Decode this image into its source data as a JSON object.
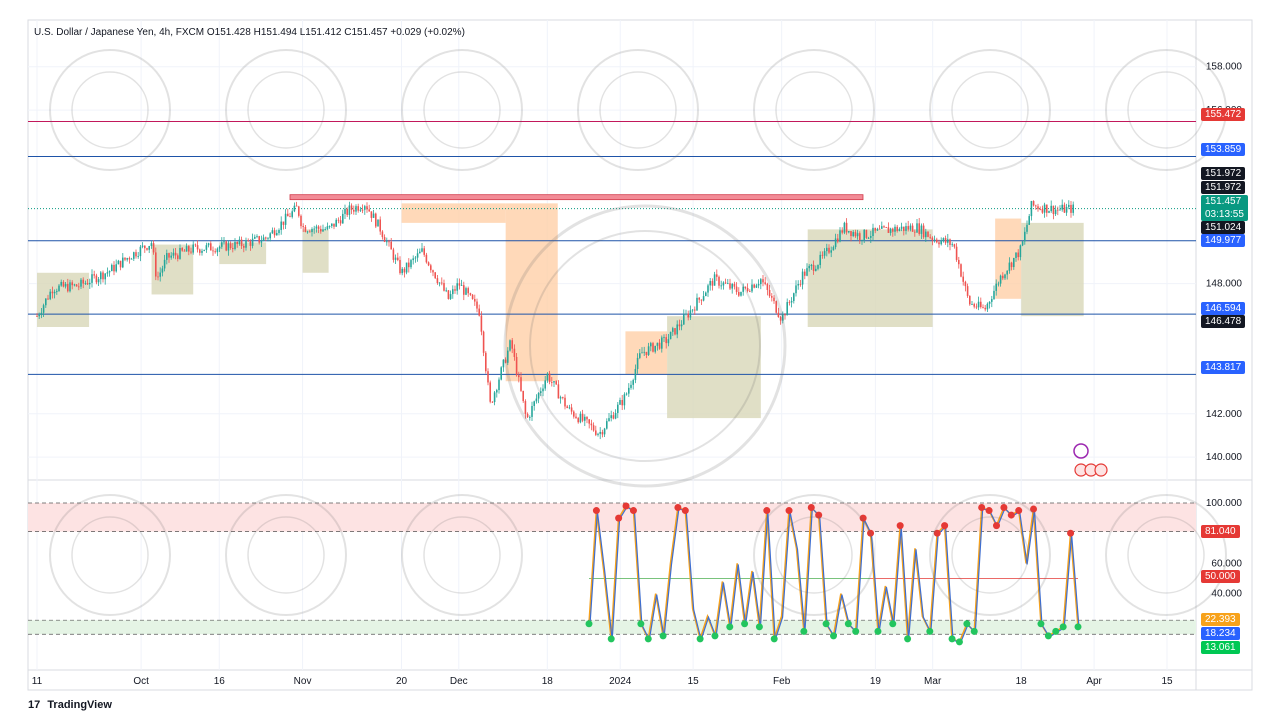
{
  "header": {
    "symbol": "U.S. Dollar / Japanese Yen, 4h, FXCM",
    "open": "O151.428",
    "high": "H151.494",
    "low": "L151.412",
    "close": "C151.457",
    "change": "+0.029 (+0.02%)"
  },
  "brand": {
    "logo": "17",
    "name": "TradingView"
  },
  "colors": {
    "up": "#26a69a",
    "down": "#ef5350",
    "accent": "#2962ff",
    "red_line": "#c2185b",
    "blue_line": "#1e53a8",
    "zone": "#d8d7b8",
    "orange_zone": "#ffcfa8"
  },
  "tags": {
    "t155": "155.472",
    "t153": "153.859",
    "t151h1": "151.972",
    "t151h2": "151.972",
    "t151last": "151.457",
    "countdown": "03:13:55",
    "t151b": "151.024",
    "t149": "149.977",
    "t146a": "146.594",
    "t146b": "146.478",
    "t143": "143.817",
    "osc81": "81.040",
    "osc50": "50.000",
    "osc22": "22.393",
    "osc18": "18.234",
    "osc13": "13.061"
  },
  "chart_data": [
    {
      "type": "candlestick",
      "title": "U.S. Dollar / Japanese Yen, 4h, FXCM",
      "ylim": [
        139.5,
        159
      ],
      "y_ticks": [
        "158.000",
        "156.000",
        "148.000",
        "142.000",
        "140.000"
      ],
      "x_ticks": [
        "11",
        "Oct",
        "16",
        "Nov",
        "20",
        "Dec",
        "18",
        "2024",
        "15",
        "Feb",
        "19",
        "Mar",
        "18",
        "Apr",
        "15"
      ],
      "horizontal_levels": [
        155.472,
        153.859,
        149.977,
        146.594,
        143.817
      ],
      "close_path": [
        [
          "Sep 11",
          146.5
        ],
        [
          "Sep 14",
          147.8
        ],
        [
          "Sep 19",
          147.9
        ],
        [
          "Sep 25",
          148.6
        ],
        [
          "Sep 29",
          149.3
        ],
        [
          "Oct 3",
          149.9
        ],
        [
          "Oct 4",
          148.2
        ],
        [
          "Oct 6",
          149.2
        ],
        [
          "Oct 11",
          149.6
        ],
        [
          "Oct 16",
          149.7
        ],
        [
          "Oct 20",
          149.8
        ],
        [
          "Oct 25",
          150.1
        ],
        [
          "Oct 31",
          151.5
        ],
        [
          "Nov 1",
          150.6
        ],
        [
          "Nov 6",
          150.5
        ],
        [
          "Nov 10",
          151.4
        ],
        [
          "Nov 13",
          151.7
        ],
        [
          "Nov 16",
          150.5
        ],
        [
          "Nov 20",
          148.5
        ],
        [
          "Nov 24",
          149.5
        ],
        [
          "Nov 29",
          147.3
        ],
        [
          "Dec 1",
          148.0
        ],
        [
          "Dec 5",
          146.7
        ],
        [
          "Dec 7",
          142.4
        ],
        [
          "Dec 11",
          145.3
        ],
        [
          "Dec 14",
          141.7
        ],
        [
          "Dec 18",
          143.8
        ],
        [
          "Dec 22",
          142.2
        ],
        [
          "Dec 28",
          141.1
        ],
        [
          "Jan 2",
          142.8
        ],
        [
          "Jan 5",
          144.8
        ],
        [
          "Jan 10",
          145.4
        ],
        [
          "Jan 15",
          146.9
        ],
        [
          "Jan 19",
          148.2
        ],
        [
          "Jan 24",
          147.6
        ],
        [
          "Jan 28",
          148.2
        ],
        [
          "Feb 1",
          146.4
        ],
        [
          "Feb 5",
          148.4
        ],
        [
          "Feb 9",
          149.2
        ],
        [
          "Feb 13",
          150.6
        ],
        [
          "Feb 16",
          150.2
        ],
        [
          "Feb 22",
          150.5
        ],
        [
          "Feb 27",
          150.6
        ],
        [
          "Mar 1",
          150.1
        ],
        [
          "Mar 5",
          149.8
        ],
        [
          "Mar 8",
          147.1
        ],
        [
          "Mar 11",
          146.8
        ],
        [
          "Mar 14",
          148.3
        ],
        [
          "Mar 18",
          149.6
        ],
        [
          "Mar 20",
          151.6
        ],
        [
          "Mar 25",
          151.4
        ],
        [
          "Mar 28",
          151.46
        ]
      ],
      "last_price": 151.457
    },
    {
      "type": "line",
      "title": "Oscillator",
      "ylim": [
        0,
        100
      ],
      "y_ticks": [
        "100.000",
        "60.000",
        "40.000"
      ],
      "overbought_zone": [
        81.04,
        100
      ],
      "oversold_zone": [
        13.061,
        22.393
      ],
      "mid_level": 50,
      "series": [
        {
          "values": [
            20,
            95,
            55,
            10,
            90,
            98,
            95,
            20,
            10,
            40,
            12,
            60,
            97,
            95,
            30,
            10,
            25,
            12,
            48,
            18,
            60,
            20,
            55,
            18,
            95,
            10,
            25,
            95,
            70,
            15,
            97,
            92,
            20,
            12,
            40,
            20,
            15,
            90,
            80,
            15,
            45,
            20,
            85,
            10,
            70,
            25,
            15,
            80,
            85,
            10,
            8,
            20,
            15,
            97,
            95,
            85,
            97,
            92,
            95,
            60,
            96,
            20,
            12,
            15,
            18,
            80,
            18
          ]
        }
      ]
    }
  ]
}
